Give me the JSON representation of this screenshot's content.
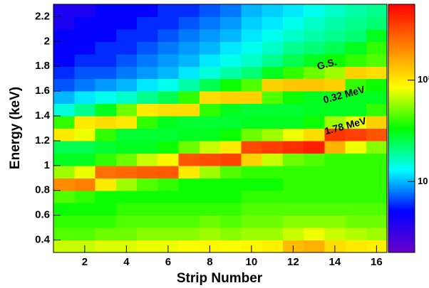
{
  "chart_data": {
    "type": "heatmap",
    "xlabel": "Strip Number",
    "ylabel": "Energy (keV)",
    "annotations": [
      "G.S.",
      "0.32 MeV",
      "1.78 MeV"
    ],
    "x": [
      1,
      2,
      3,
      4,
      5,
      6,
      7,
      8,
      9,
      10,
      11,
      12,
      13,
      14,
      15,
      16
    ],
    "y": [
      0.35,
      0.45,
      0.55,
      0.65,
      0.75,
      0.85,
      0.95,
      1.05,
      1.15,
      1.25,
      1.35,
      1.45,
      1.55,
      1.65,
      1.75,
      1.85,
      1.95,
      2.05,
      2.15,
      2.25
    ],
    "z": [
      [
        70,
        70,
        75,
        75,
        80,
        80,
        85,
        90,
        85,
        90,
        95,
        140,
        150,
        110,
        100,
        95
      ],
      [
        45,
        45,
        50,
        50,
        55,
        55,
        55,
        60,
        55,
        60,
        60,
        70,
        80,
        70,
        65,
        60
      ],
      [
        40,
        40,
        40,
        45,
        45,
        45,
        45,
        50,
        45,
        50,
        50,
        55,
        55,
        55,
        50,
        50
      ],
      [
        35,
        35,
        35,
        40,
        40,
        40,
        40,
        40,
        40,
        45,
        45,
        45,
        45,
        45,
        45,
        45
      ],
      [
        45,
        40,
        35,
        35,
        35,
        35,
        35,
        35,
        35,
        40,
        40,
        40,
        40,
        40,
        40,
        40
      ],
      [
        200,
        220,
        100,
        60,
        45,
        40,
        35,
        35,
        35,
        35,
        35,
        40,
        40,
        40,
        40,
        40
      ],
      [
        60,
        80,
        250,
        260,
        280,
        290,
        100,
        60,
        45,
        40,
        40,
        40,
        40,
        40,
        40,
        40
      ],
      [
        30,
        30,
        40,
        50,
        70,
        90,
        300,
        320,
        340,
        120,
        70,
        50,
        45,
        40,
        40,
        40
      ],
      [
        25,
        25,
        28,
        30,
        30,
        35,
        50,
        70,
        100,
        330,
        360,
        400,
        450,
        150,
        80,
        55
      ],
      [
        100,
        80,
        40,
        28,
        28,
        28,
        30,
        30,
        35,
        50,
        60,
        80,
        110,
        380,
        350,
        300
      ],
      [
        40,
        100,
        110,
        100,
        40,
        30,
        28,
        28,
        28,
        30,
        30,
        30,
        35,
        60,
        80,
        120
      ],
      [
        15,
        20,
        30,
        50,
        100,
        110,
        110,
        40,
        30,
        28,
        28,
        28,
        30,
        30,
        30,
        40
      ],
      [
        10,
        12,
        14,
        16,
        20,
        25,
        40,
        110,
        120,
        120,
        45,
        35,
        30,
        30,
        30,
        30
      ],
      [
        7,
        8,
        9,
        10,
        12,
        14,
        18,
        25,
        35,
        45,
        120,
        130,
        130,
        120,
        40,
        35
      ],
      [
        6,
        7,
        7,
        8,
        9,
        10,
        12,
        15,
        18,
        22,
        30,
        40,
        50,
        60,
        120,
        110
      ],
      [
        5,
        6,
        6,
        7,
        8,
        9,
        10,
        12,
        14,
        16,
        20,
        25,
        30,
        35,
        40,
        45
      ],
      [
        5,
        5,
        6,
        6,
        7,
        8,
        9,
        10,
        12,
        14,
        16,
        20,
        22,
        25,
        30,
        40
      ],
      [
        5,
        5,
        5,
        6,
        6,
        7,
        8,
        9,
        10,
        12,
        14,
        16,
        18,
        20,
        22,
        30
      ],
      [
        4,
        5,
        5,
        5,
        6,
        6,
        7,
        8,
        9,
        11,
        12,
        14,
        16,
        18,
        20,
        22
      ],
      [
        4,
        4,
        5,
        5,
        5,
        6,
        6,
        7,
        8,
        10,
        11,
        12,
        14,
        16,
        18,
        20
      ]
    ],
    "xlim": [
      0.5,
      16.5
    ],
    "xticks": [
      2,
      4,
      6,
      8,
      10,
      12,
      14,
      16
    ],
    "ylim": [
      0.3,
      2.3
    ],
    "yticks": [
      0.4,
      0.6,
      0.8,
      1,
      1.2,
      1.4,
      1.6,
      1.8,
      2,
      2.2
    ],
    "zlim": [
      2,
      560
    ],
    "zscale": "log",
    "zticks": [
      10,
      {
        "value": 100,
        "label": "10²"
      }
    ],
    "colorscale": [
      "#6a00c8",
      "#0000ff",
      "#00ffff",
      "#00ff00",
      "#ffff00",
      "#ff8000",
      "#ff0000"
    ]
  }
}
